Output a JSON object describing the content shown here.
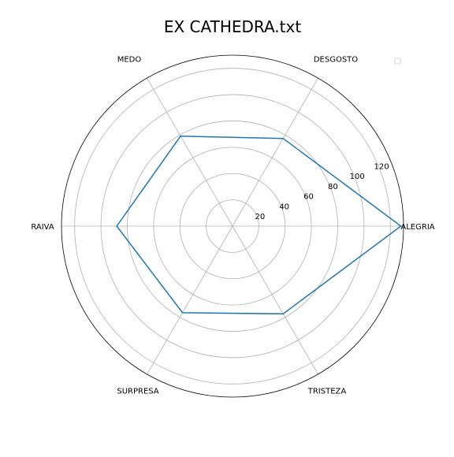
{
  "chart_data": {
    "type": "radar",
    "title": "EX CATHEDRA.txt",
    "categories": [
      "ALEGRIA",
      "DESGOSTO",
      "MEDO",
      "RAIVA",
      "SURPRESA",
      "TRISTEZA"
    ],
    "series": [
      {
        "values": [
          128,
          77,
          79,
          88,
          76,
          77
        ]
      }
    ],
    "r_ticks": [
      20,
      40,
      60,
      80,
      100,
      120
    ],
    "rlim": [
      0,
      130
    ],
    "grid": true,
    "legend": "top-right",
    "colors": {
      "series": "#1f77b4",
      "grid": "#b0b0b0",
      "frame": "#000000"
    }
  }
}
